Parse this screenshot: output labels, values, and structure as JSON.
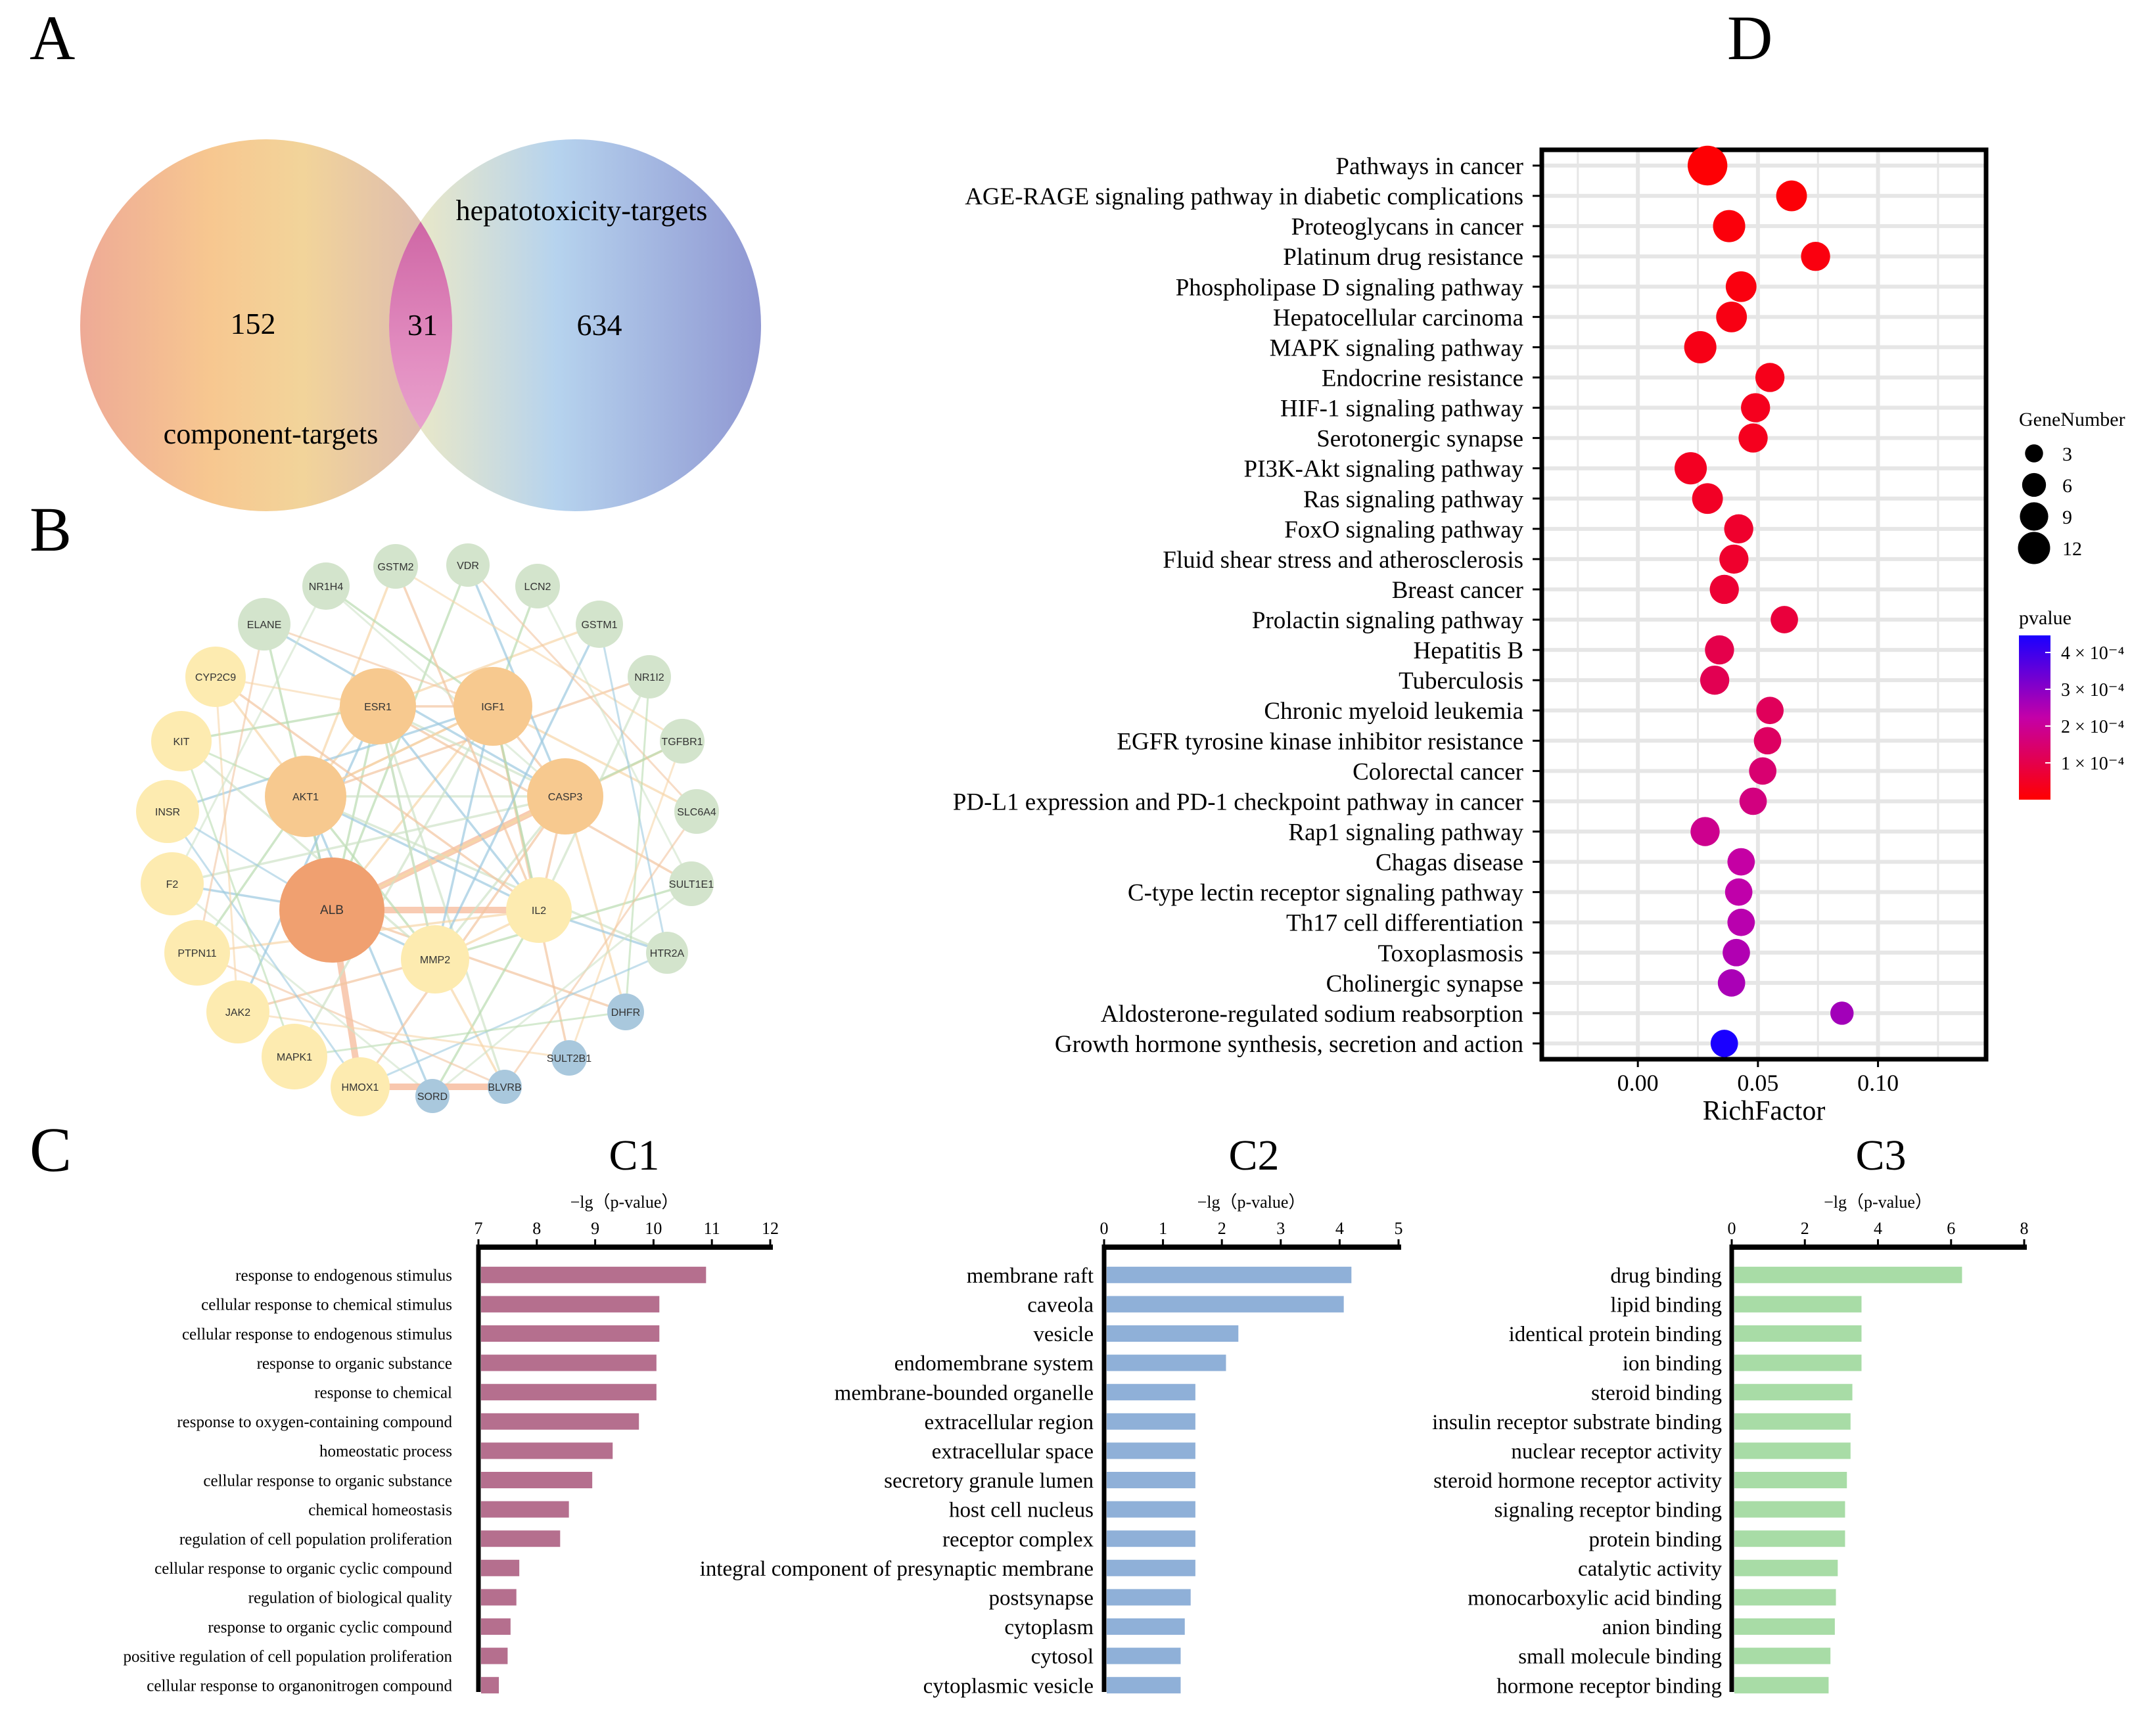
{
  "panels": {
    "a": "A",
    "b": "B",
    "c": "C",
    "d": "D",
    "c1": "C1",
    "c2": "C2",
    "c3": "C3"
  },
  "colors": {
    "venn_left": "#f2b888",
    "venn_right": "#a7b8e0",
    "venn_overlap": "#c964a6",
    "net_big": "#f0a070",
    "net_mid": "#f7c98f",
    "net_yellow": "#fdebb0",
    "net_green": "#d3e4cc",
    "net_blue": "#a9c8dd",
    "c1_bar": "#b56f8e",
    "c2_bar": "#8fb0d8",
    "c3_bar": "#a8dca6",
    "p_low": "#ff0000",
    "p_mid": "#b000c0",
    "p_high": "#0000ff",
    "grid_bg": "#ffffff",
    "grid_line": "#e6e6e6"
  },
  "venn": {
    "left_label": "component-targets",
    "right_label": "hepatotoxicity-targets",
    "left_only": "152",
    "overlap": "31",
    "right_only": "634"
  },
  "network": {
    "nodes": [
      {
        "label": "ALB",
        "tier": "big"
      },
      {
        "label": "AKT1",
        "tier": "mid"
      },
      {
        "label": "ESR1",
        "tier": "mid"
      },
      {
        "label": "IGF1",
        "tier": "mid"
      },
      {
        "label": "CASP3",
        "tier": "mid"
      },
      {
        "label": "IL2",
        "tier": "yellow"
      },
      {
        "label": "MMP2",
        "tier": "yellow"
      },
      {
        "label": "GSTM2",
        "tier": "green"
      },
      {
        "label": "VDR",
        "tier": "green"
      },
      {
        "label": "LCN2",
        "tier": "green"
      },
      {
        "label": "GSTM1",
        "tier": "green"
      },
      {
        "label": "NR1I2",
        "tier": "green"
      },
      {
        "label": "TGFBR1",
        "tier": "green"
      },
      {
        "label": "SLC6A4",
        "tier": "green"
      },
      {
        "label": "SULT1E1",
        "tier": "green"
      },
      {
        "label": "HTR2A",
        "tier": "green"
      },
      {
        "label": "DHFR",
        "tier": "blue"
      },
      {
        "label": "SULT2B1",
        "tier": "blue"
      },
      {
        "label": "BLVRB",
        "tier": "blue"
      },
      {
        "label": "SORD",
        "tier": "blue"
      },
      {
        "label": "HMOX1",
        "tier": "yellow"
      },
      {
        "label": "MAPK1",
        "tier": "yellow"
      },
      {
        "label": "JAK2",
        "tier": "yellow"
      },
      {
        "label": "PTPN11",
        "tier": "yellow"
      },
      {
        "label": "F2",
        "tier": "yellow"
      },
      {
        "label": "INSR",
        "tier": "yellow"
      },
      {
        "label": "KIT",
        "tier": "yellow"
      },
      {
        "label": "CYP2C9",
        "tier": "yellow"
      },
      {
        "label": "ELANE",
        "tier": "green"
      },
      {
        "label": "NR1H4",
        "tier": "green"
      }
    ]
  },
  "chart_data": [
    {
      "id": "C1",
      "type": "bar",
      "orientation": "horizontal",
      "xlabel": "−lg（p-value）",
      "xlim": [
        7,
        12
      ],
      "xticks": [
        "7",
        "8",
        "9",
        "10",
        "11",
        "12"
      ],
      "categories": [
        "response to endogenous stimulus",
        "cellular response to chemical stimulus",
        "cellular response to endogenous stimulus",
        "response to organic substance",
        "response to chemical",
        "response to oxygen-containing compound",
        "homeostatic process",
        "cellular response to organic substance",
        "chemical homeostasis",
        "regulation of cell population proliferation",
        "cellular response to organic cyclic compound",
        "regulation of biological quality",
        "response to organic cyclic compound",
        "positive regulation of cell population proliferation",
        "cellular response to organonitrogen compound"
      ],
      "values": [
        10.9,
        10.1,
        10.1,
        10.05,
        10.05,
        9.75,
        9.3,
        8.95,
        8.55,
        8.4,
        7.7,
        7.65,
        7.55,
        7.5,
        7.35
      ]
    },
    {
      "id": "C2",
      "type": "bar",
      "orientation": "horizontal",
      "xlabel": "−lg（p-value）",
      "xlim": [
        0,
        5
      ],
      "xticks": [
        "0",
        "1",
        "2",
        "3",
        "4",
        "5"
      ],
      "categories": [
        "membrane raft",
        "caveola",
        "vesicle",
        "endomembrane system",
        "membrane-bounded organelle",
        "extracellular region",
        "extracellular space",
        "secretory granule lumen",
        "host cell nucleus",
        "receptor complex",
        "integral component of presynaptic membrane",
        "postsynapse",
        "cytoplasm",
        "cytosol",
        "cytoplasmic vesicle"
      ],
      "values": [
        4.2,
        4.07,
        2.28,
        2.07,
        1.55,
        1.55,
        1.55,
        1.55,
        1.55,
        1.55,
        1.55,
        1.47,
        1.37,
        1.3,
        1.3
      ]
    },
    {
      "id": "C3",
      "type": "bar",
      "orientation": "horizontal",
      "xlabel": "−lg（p-value）",
      "xlim": [
        0,
        8
      ],
      "xticks": [
        "0",
        "2",
        "4",
        "6",
        "8"
      ],
      "categories": [
        "drug binding",
        "lipid binding",
        "identical protein binding",
        "ion binding",
        "steroid binding",
        "insulin receptor substrate binding",
        "nuclear receptor activity",
        "steroid hormone receptor activity",
        "signaling receptor binding",
        "protein binding",
        "catalytic activity",
        "monocarboxylic acid binding",
        "anion binding",
        "small molecule binding",
        "hormone receptor binding"
      ],
      "values": [
        6.3,
        3.55,
        3.55,
        3.55,
        3.3,
        3.25,
        3.25,
        3.15,
        3.1,
        3.1,
        2.9,
        2.85,
        2.82,
        2.7,
        2.65
      ]
    },
    {
      "id": "D",
      "type": "scatter",
      "subtype": "bubble",
      "xlabel": "RichFactor",
      "xlim": [
        -0.04,
        0.145
      ],
      "xticks": [
        "0.00",
        "0.05",
        "0.10"
      ],
      "xtick_values": [
        0,
        0.05,
        0.1
      ],
      "size_legend_title": "GeneNumber",
      "size_legend": [
        {
          "label": "3",
          "value": 3
        },
        {
          "label": "6",
          "value": 6
        },
        {
          "label": "9",
          "value": 9
        },
        {
          "label": "12",
          "value": 12
        }
      ],
      "color_legend_title": "pvalue",
      "color_legend": [
        "4 × 10⁻⁴",
        "3 × 10⁻⁴",
        "2 × 10⁻⁴",
        "1 × 10⁻⁴"
      ],
      "pvalue_range": [
        0,
        0.00045
      ],
      "points": [
        {
          "term": "Pathways in cancer",
          "x": 0.029,
          "size": 14,
          "p": 5e-06
        },
        {
          "term": "AGE-RAGE signaling pathway in diabetic complications",
          "x": 0.064,
          "size": 7,
          "p": 1e-05
        },
        {
          "term": "Proteoglycans in cancer",
          "x": 0.038,
          "size": 8,
          "p": 1.5e-05
        },
        {
          "term": "Platinum drug resistance",
          "x": 0.074,
          "size": 6,
          "p": 2e-05
        },
        {
          "term": "Phospholipase D signaling pathway",
          "x": 0.043,
          "size": 7,
          "p": 2e-05
        },
        {
          "term": "Hepatocellular carcinoma",
          "x": 0.039,
          "size": 7,
          "p": 2.5e-05
        },
        {
          "term": "MAPK signaling pathway",
          "x": 0.026,
          "size": 8,
          "p": 3e-05
        },
        {
          "term": "Endocrine resistance",
          "x": 0.055,
          "size": 6,
          "p": 3.5e-05
        },
        {
          "term": "HIF-1 signaling pathway",
          "x": 0.049,
          "size": 6,
          "p": 4e-05
        },
        {
          "term": "Serotonergic synapse",
          "x": 0.048,
          "size": 6,
          "p": 4e-05
        },
        {
          "term": "PI3K-Akt signaling pathway",
          "x": 0.022,
          "size": 8,
          "p": 4.5e-05
        },
        {
          "term": "Ras signaling pathway",
          "x": 0.029,
          "size": 7,
          "p": 5e-05
        },
        {
          "term": "FoxO signaling pathway",
          "x": 0.042,
          "size": 6,
          "p": 6e-05
        },
        {
          "term": "Fluid shear stress and atherosclerosis",
          "x": 0.04,
          "size": 6,
          "p": 6e-05
        },
        {
          "term": "Breast cancer",
          "x": 0.036,
          "size": 6,
          "p": 7e-05
        },
        {
          "term": "Prolactin signaling pathway",
          "x": 0.061,
          "size": 5,
          "p": 8e-05
        },
        {
          "term": "Hepatitis B",
          "x": 0.034,
          "size": 6,
          "p": 0.0001
        },
        {
          "term": "Tuberculosis",
          "x": 0.032,
          "size": 6,
          "p": 0.00011
        },
        {
          "term": "Chronic myeloid leukemia",
          "x": 0.055,
          "size": 5,
          "p": 0.00012
        },
        {
          "term": "EGFR tyrosine kinase inhibitor resistance",
          "x": 0.054,
          "size": 5,
          "p": 0.00013
        },
        {
          "term": "Colorectal cancer",
          "x": 0.052,
          "size": 5,
          "p": 0.00015
        },
        {
          "term": "PD-L1 expression and PD-1 checkpoint pathway in cancer",
          "x": 0.048,
          "size": 5,
          "p": 0.00017
        },
        {
          "term": "Rap1 signaling pathway",
          "x": 0.028,
          "size": 6,
          "p": 0.00019
        },
        {
          "term": "Chagas disease",
          "x": 0.043,
          "size": 5,
          "p": 0.00022
        },
        {
          "term": "C-type lectin receptor signaling pathway",
          "x": 0.042,
          "size": 5,
          "p": 0.00023
        },
        {
          "term": "Th17 cell differentiation",
          "x": 0.043,
          "size": 5,
          "p": 0.00024
        },
        {
          "term": "Toxoplasmosis",
          "x": 0.041,
          "size": 5,
          "p": 0.00025
        },
        {
          "term": "Cholinergic synapse",
          "x": 0.039,
          "size": 5,
          "p": 0.00026
        },
        {
          "term": "Aldosterone-regulated sodium reabsorption",
          "x": 0.085,
          "size": 3,
          "p": 0.00027
        },
        {
          "term": "Growth hormone synthesis, secretion and action",
          "x": 0.036,
          "size": 5,
          "p": 0.00045
        }
      ]
    }
  ]
}
